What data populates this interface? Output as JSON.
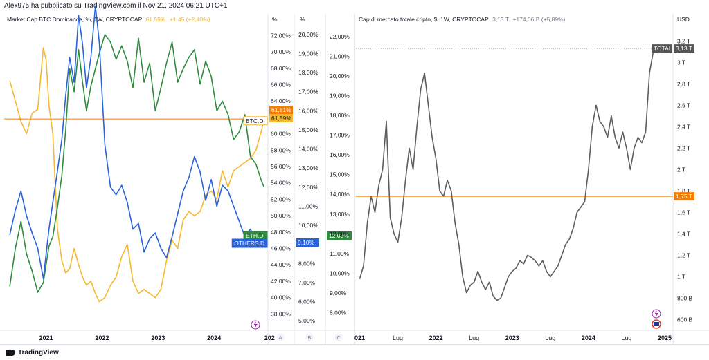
{
  "header": {
    "text": "Alex975 ha pubblicato su TradingView.com il Nov 21, 2024 06:21 UTC+1"
  },
  "left_legend": {
    "title": "Market Cap BTC Dominance, %, 1W, CRYPTOCAP",
    "value": "61,59%",
    "change": "+1,45 (+2,40%)"
  },
  "right_legend": {
    "title": "Cap di mercato totale cripto, $, 1W, CRYPTOCAP",
    "value": "3,13 T",
    "change": "+174,06 B (+5,89%)"
  },
  "footer": {
    "brand": "TradingView"
  },
  "colors": {
    "btc": "#f5b82e",
    "eth": "#2e8b3e",
    "others": "#2962d9",
    "total": "#5d5d5d",
    "orange": "#f57c00",
    "axis_text": "#131722"
  },
  "chart_data": [
    {
      "type": "line",
      "title": "Market Cap BTC Dominance, %, 1W, CRYPTOCAP",
      "x_tick_labels": [
        "2021",
        "2022",
        "2023",
        "2024",
        "202"
      ],
      "axes": [
        {
          "id": "A",
          "unit": "%",
          "ylim": [
            36.0,
            73.3
          ],
          "ticks": [
            "72,00%",
            "70,00%",
            "68,00%",
            "66,00%",
            "64,00%",
            "62,00%",
            "60,00%",
            "58,00%",
            "56,00%",
            "54,00%",
            "52,00%",
            "50,00%",
            "48,00%",
            "46,00%",
            "44,00%",
            "42,00%",
            "40,00%",
            "38,00%"
          ]
        },
        {
          "id": "B",
          "unit": "%",
          "ylim": [
            4.5,
            20.5
          ],
          "ticks": [
            "20,00%",
            "19,00%",
            "18,00%",
            "17,00%",
            "16,00%",
            "15,00%",
            "14,00%",
            "13,00%",
            "12,00%",
            "11,00%",
            "10,00%",
            "9,00%",
            "8,00%",
            "7,00%",
            "6,00%",
            "5,00%"
          ]
        },
        {
          "id": "C",
          "unit": "",
          "ticks": []
        }
      ],
      "price_labels": [
        {
          "text": "61,81%",
          "axis": "A",
          "value": 61.81,
          "color": "#f57c00"
        },
        {
          "text": "61,59%",
          "axis": "A",
          "value": 61.59,
          "color": "#f5b82e"
        },
        {
          "text": "9,10%",
          "axis": "B",
          "value": 9.1,
          "color": "#2962d9"
        },
        {
          "text": "12,03%",
          "axis": "C",
          "value": 12.03,
          "color": "#2e8b3e"
        }
      ],
      "series": [
        {
          "name": "BTC.D",
          "axis": "A",
          "color": "#f5b82e",
          "x": [
            2020.35,
            2020.45,
            2020.55,
            2020.65,
            2020.75,
            2020.85,
            2020.95,
            2021.0,
            2021.05,
            2021.12,
            2021.2,
            2021.28,
            2021.35,
            2021.42,
            2021.5,
            2021.58,
            2021.65,
            2021.72,
            2021.8,
            2021.88,
            2021.95,
            2022.05,
            2022.15,
            2022.25,
            2022.35,
            2022.45,
            2022.55,
            2022.65,
            2022.75,
            2022.85,
            2022.95,
            2023.05,
            2023.15,
            2023.25,
            2023.35,
            2023.45,
            2023.55,
            2023.65,
            2023.75,
            2023.85,
            2023.95,
            2024.05,
            2024.15,
            2024.25,
            2024.35,
            2024.45,
            2024.55,
            2024.65,
            2024.75,
            2024.85,
            2024.89
          ],
          "y": [
            66.5,
            64.0,
            61.5,
            60.0,
            62.5,
            63.0,
            70.5,
            69.0,
            63.5,
            60.0,
            48.5,
            44.5,
            43.0,
            43.5,
            46.0,
            44.0,
            42.5,
            41.5,
            42.0,
            40.5,
            39.5,
            40.0,
            41.5,
            42.5,
            45.0,
            46.5,
            42.0,
            40.5,
            41.0,
            40.5,
            40.0,
            41.0,
            44.5,
            47.0,
            46.0,
            49.5,
            50.5,
            50.0,
            50.5,
            52.5,
            53.0,
            52.0,
            55.5,
            53.5,
            55.5,
            56.0,
            56.5,
            57.0,
            58.0,
            60.5,
            61.59
          ]
        },
        {
          "name": "ETH.D",
          "axis": "B",
          "color": "#2e8b3e",
          "x": [
            2020.35,
            2020.45,
            2020.55,
            2020.65,
            2020.75,
            2020.85,
            2020.95,
            2021.05,
            2021.12,
            2021.2,
            2021.28,
            2021.35,
            2021.42,
            2021.5,
            2021.58,
            2021.65,
            2021.72,
            2021.8,
            2021.88,
            2021.95,
            2022.05,
            2022.15,
            2022.25,
            2022.35,
            2022.45,
            2022.55,
            2022.65,
            2022.75,
            2022.85,
            2022.95,
            2023.05,
            2023.15,
            2023.25,
            2023.35,
            2023.45,
            2023.55,
            2023.65,
            2023.75,
            2023.85,
            2023.95,
            2024.05,
            2024.15,
            2024.25,
            2024.35,
            2024.45,
            2024.55,
            2024.65,
            2024.75,
            2024.85,
            2024.89
          ],
          "y": [
            6.8,
            8.8,
            10.2,
            8.5,
            7.6,
            6.5,
            7.0,
            8.9,
            9.4,
            10.9,
            12.6,
            15.0,
            18.2,
            17.0,
            19.2,
            17.5,
            16.0,
            17.3,
            18.2,
            19.0,
            20.0,
            19.6,
            18.7,
            19.4,
            18.6,
            17.2,
            19.8,
            17.5,
            18.5,
            16.0,
            17.2,
            18.5,
            19.6,
            17.5,
            18.2,
            18.8,
            19.2,
            17.4,
            18.6,
            17.8,
            16.0,
            16.5,
            15.8,
            14.5,
            14.9,
            15.8,
            13.6,
            13.2,
            12.3,
            12.03
          ]
        },
        {
          "name": "OTHERS.D",
          "axis": "C",
          "color": "#2962d9",
          "x": [
            2020.35,
            2020.45,
            2020.55,
            2020.65,
            2020.75,
            2020.85,
            2020.95,
            2021.05,
            2021.12,
            2021.2,
            2021.28,
            2021.35,
            2021.42,
            2021.5,
            2021.58,
            2021.65,
            2021.72,
            2021.8,
            2021.88,
            2021.95,
            2022.05,
            2022.15,
            2022.25,
            2022.35,
            2022.45,
            2022.55,
            2022.65,
            2022.75,
            2022.85,
            2022.95,
            2023.05,
            2023.15,
            2023.25,
            2023.35,
            2023.45,
            2023.55,
            2023.65,
            2023.75,
            2023.85,
            2023.95,
            2024.05,
            2024.15,
            2024.25,
            2024.35,
            2024.45,
            2024.55,
            2024.65,
            2024.75,
            2024.85,
            2024.89
          ],
          "y": [
            9.5,
            10.8,
            11.8,
            10.5,
            9.6,
            8.8,
            7.2,
            9.8,
            11.2,
            12.8,
            14.5,
            16.8,
            18.8,
            17.5,
            21.0,
            19.5,
            17.2,
            18.8,
            21.5,
            19.6,
            14.2,
            12.0,
            11.6,
            12.1,
            11.2,
            9.8,
            10.1,
            8.6,
            9.3,
            9.6,
            8.8,
            8.3,
            9.4,
            10.6,
            11.8,
            12.5,
            13.6,
            12.8,
            11.3,
            12.4,
            11.0,
            12.1,
            11.8,
            11.0,
            10.2,
            9.4,
            9.8,
            9.2,
            9.5,
            9.1
          ]
        }
      ]
    },
    {
      "type": "line",
      "title": "Cap di mercato totale cripto, $, 1W, CRYPTOCAP",
      "x_tick_labels": [
        "021",
        "Lug",
        "2022",
        "Lug",
        "2023",
        "Lug",
        "2024",
        "Lug",
        "2025"
      ],
      "axes": [
        {
          "id": "left",
          "unit": "%",
          "ylim": [
            7.1,
            22.6
          ],
          "ticks": [
            "22,00%",
            "21,00%",
            "20,00%",
            "19,00%",
            "18,00%",
            "17,00%",
            "16,00%",
            "15,00%",
            "14,00%",
            "13,00%",
            "12,00%",
            "11,00%",
            "10,00%",
            "9,00%",
            "8,00%"
          ]
        },
        {
          "id": "right",
          "unit": "USD",
          "ylim": [
            0.5,
            3.35
          ],
          "ticks": [
            "3,2 T",
            "3 T",
            "2,8 T",
            "2,6 T",
            "2,4 T",
            "2,2 T",
            "2 T",
            "1,8 T",
            "1,6 T",
            "1,4 T",
            "1,2 T",
            "1 T",
            "800 B",
            "600 B"
          ]
        }
      ],
      "price_labels": [
        {
          "text": "TOTAL",
          "axis": "right",
          "value": 3.13,
          "color": "#555555"
        },
        {
          "text": "3,13 T",
          "axis": "right",
          "value": 3.13,
          "color": "#555555"
        },
        {
          "text": "1,75 T",
          "axis": "right",
          "value": 1.75,
          "color": "#f57c00"
        }
      ],
      "series": [
        {
          "name": "TOTAL",
          "axis": "right",
          "color": "#5d5d5d",
          "x": [
            2021.0,
            2021.05,
            2021.1,
            2021.15,
            2021.2,
            2021.25,
            2021.3,
            2021.35,
            2021.4,
            2021.45,
            2021.5,
            2021.55,
            2021.6,
            2021.65,
            2021.7,
            2021.75,
            2021.8,
            2021.85,
            2021.9,
            2021.95,
            2022.0,
            2022.05,
            2022.1,
            2022.15,
            2022.2,
            2022.25,
            2022.3,
            2022.35,
            2022.4,
            2022.45,
            2022.5,
            2022.55,
            2022.6,
            2022.65,
            2022.7,
            2022.75,
            2022.8,
            2022.85,
            2022.9,
            2022.95,
            2023.0,
            2023.05,
            2023.1,
            2023.15,
            2023.2,
            2023.25,
            2023.3,
            2023.35,
            2023.4,
            2023.45,
            2023.5,
            2023.55,
            2023.6,
            2023.65,
            2023.7,
            2023.75,
            2023.8,
            2023.85,
            2023.9,
            2023.95,
            2024.0,
            2024.05,
            2024.1,
            2024.15,
            2024.2,
            2024.25,
            2024.3,
            2024.35,
            2024.4,
            2024.45,
            2024.5,
            2024.55,
            2024.6,
            2024.65,
            2024.7,
            2024.75,
            2024.8,
            2024.85,
            2024.87
          ],
          "y": [
            0.98,
            1.1,
            1.5,
            1.75,
            1.6,
            1.85,
            2.0,
            2.45,
            1.55,
            1.4,
            1.32,
            1.55,
            1.9,
            2.2,
            2.0,
            2.4,
            2.75,
            2.9,
            2.6,
            2.3,
            2.1,
            1.8,
            1.75,
            1.9,
            1.8,
            1.5,
            1.3,
            1.0,
            0.85,
            0.92,
            0.95,
            1.05,
            0.95,
            0.88,
            0.95,
            0.82,
            0.78,
            0.8,
            0.9,
            1.0,
            1.05,
            1.08,
            1.15,
            1.12,
            1.2,
            1.18,
            1.15,
            1.1,
            1.15,
            1.05,
            1.0,
            1.05,
            1.1,
            1.2,
            1.3,
            1.35,
            1.45,
            1.6,
            1.65,
            1.7,
            2.0,
            2.4,
            2.6,
            2.45,
            2.4,
            2.3,
            2.5,
            2.3,
            2.2,
            2.35,
            2.2,
            2.0,
            2.2,
            2.3,
            2.25,
            2.35,
            2.9,
            3.1,
            3.13
          ]
        }
      ]
    }
  ]
}
